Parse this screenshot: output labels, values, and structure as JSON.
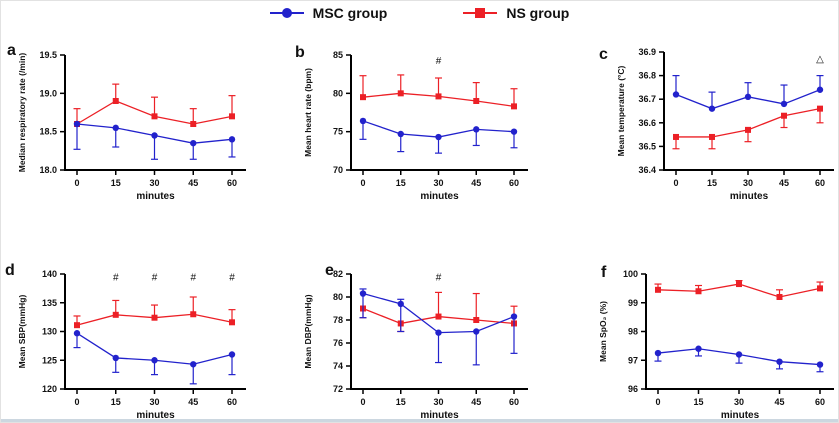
{
  "figure": {
    "legend": {
      "items": [
        {
          "label": "MSC group",
          "color": "#2222cc",
          "marker": "circle"
        },
        {
          "label": "NS group",
          "color": "#ec2026",
          "marker": "square"
        }
      ]
    }
  },
  "chart_data": [
    {
      "panel": "a",
      "type": "line",
      "xlabel": "minutes",
      "ylabel": "Median respiratory rate (/min)",
      "x": [
        0,
        15,
        30,
        45,
        60
      ],
      "ylim": [
        18.0,
        19.5
      ],
      "yticks": [
        18.0,
        18.5,
        19.0,
        19.5
      ],
      "ydecimals": 1,
      "series": [
        {
          "name": "MSC group",
          "color": "#2222cc",
          "marker": "circle",
          "values": [
            18.6,
            18.55,
            18.45,
            18.35,
            18.4
          ],
          "err_up": [
            0,
            0,
            0,
            0,
            0
          ],
          "err_down": [
            0.33,
            0.25,
            0.31,
            0.21,
            0.23
          ]
        },
        {
          "name": "NS group",
          "color": "#ec2026",
          "marker": "square",
          "values": [
            18.6,
            18.9,
            18.7,
            18.6,
            18.7
          ],
          "err_up": [
            0.2,
            0.22,
            0.25,
            0.2,
            0.27
          ],
          "err_down": [
            0,
            0,
            0,
            0,
            0
          ]
        }
      ],
      "annotations": []
    },
    {
      "panel": "b",
      "type": "line",
      "xlabel": "minutes",
      "ylabel": "Mean heart rate (bpm)",
      "x": [
        0,
        15,
        30,
        45,
        60
      ],
      "ylim": [
        70,
        85
      ],
      "yticks": [
        70,
        75,
        80,
        85
      ],
      "ydecimals": 0,
      "series": [
        {
          "name": "MSC group",
          "color": "#2222cc",
          "marker": "circle",
          "values": [
            76.4,
            74.7,
            74.3,
            75.3,
            75.0
          ],
          "err_up": [
            0,
            0,
            0,
            0,
            0
          ],
          "err_down": [
            2.4,
            2.3,
            2.1,
            2.1,
            2.1
          ]
        },
        {
          "name": "NS group",
          "color": "#ec2026",
          "marker": "square",
          "values": [
            79.5,
            80.0,
            79.6,
            79.0,
            78.3
          ],
          "err_up": [
            2.8,
            2.4,
            2.4,
            2.4,
            2.3
          ],
          "err_down": [
            0,
            0,
            0,
            0,
            0
          ]
        }
      ],
      "annotations": [
        {
          "text": "#",
          "x": 30,
          "y": 84.2,
          "color": "#3d3d3d"
        }
      ]
    },
    {
      "panel": "c",
      "type": "line",
      "xlabel": "minutes",
      "ylabel": "Mean temperature (°C)",
      "x": [
        0,
        15,
        30,
        45,
        60
      ],
      "ylim": [
        36.4,
        36.9
      ],
      "yticks": [
        36.4,
        36.5,
        36.6,
        36.7,
        36.8,
        36.9
      ],
      "ydecimals": 1,
      "series": [
        {
          "name": "MSC group",
          "color": "#2222cc",
          "marker": "circle",
          "values": [
            36.72,
            36.66,
            36.71,
            36.68,
            36.74
          ],
          "err_up": [
            0.08,
            0.07,
            0.06,
            0.08,
            0.06
          ],
          "err_down": [
            0,
            0,
            0,
            0,
            0
          ]
        },
        {
          "name": "NS group",
          "color": "#ec2026",
          "marker": "square",
          "values": [
            36.54,
            36.54,
            36.57,
            36.63,
            36.66
          ],
          "err_up": [
            0,
            0,
            0,
            0,
            0
          ],
          "err_down": [
            0.05,
            0.05,
            0.05,
            0.05,
            0.06
          ]
        }
      ],
      "annotations": [
        {
          "text": "△",
          "x": 60,
          "y": 36.87,
          "color": "#b0b0b0"
        }
      ]
    },
    {
      "panel": "d",
      "type": "line",
      "xlabel": "minutes",
      "ylabel": "Mean SBP(mmHg)",
      "x": [
        0,
        15,
        30,
        45,
        60
      ],
      "ylim": [
        120,
        140
      ],
      "yticks": [
        120,
        125,
        130,
        135,
        140
      ],
      "ydecimals": 0,
      "series": [
        {
          "name": "MSC group",
          "color": "#2222cc",
          "marker": "circle",
          "values": [
            129.7,
            125.4,
            125.0,
            124.3,
            126.0
          ],
          "err_up": [
            0,
            0,
            0,
            0,
            0
          ],
          "err_down": [
            2.5,
            2.5,
            2.5,
            3.4,
            3.5
          ]
        },
        {
          "name": "NS group",
          "color": "#ec2026",
          "marker": "square",
          "values": [
            131.1,
            132.9,
            132.4,
            133.0,
            131.6
          ],
          "err_up": [
            1.6,
            2.5,
            2.2,
            3.0,
            2.2
          ],
          "err_down": [
            0,
            0,
            0,
            0,
            0
          ]
        }
      ],
      "annotations": [
        {
          "text": "#",
          "x": 15,
          "y": 139.4,
          "color": "#3d3d3d"
        },
        {
          "text": "#",
          "x": 30,
          "y": 139.4,
          "color": "#3d3d3d"
        },
        {
          "text": "#",
          "x": 45,
          "y": 139.4,
          "color": "#3d3d3d"
        },
        {
          "text": "#",
          "x": 60,
          "y": 139.4,
          "color": "#3d3d3d"
        }
      ]
    },
    {
      "panel": "e",
      "type": "line",
      "xlabel": "minutes",
      "ylabel": "Mean DBP(mmHg)",
      "x": [
        0,
        15,
        30,
        45,
        60
      ],
      "ylim": [
        72,
        82
      ],
      "yticks": [
        72,
        74,
        76,
        78,
        80,
        82
      ],
      "ydecimals": 0,
      "series": [
        {
          "name": "MSC group",
          "color": "#2222cc",
          "marker": "circle",
          "values": [
            80.3,
            79.4,
            76.9,
            77.0,
            78.3
          ],
          "err_up": [
            0.4,
            0.4,
            0,
            0,
            0
          ],
          "err_down": [
            2.1,
            2.4,
            2.6,
            2.9,
            3.2
          ]
        },
        {
          "name": "NS group",
          "color": "#ec2026",
          "marker": "square",
          "values": [
            79.0,
            77.7,
            78.3,
            78.0,
            77.7
          ],
          "err_up": [
            0,
            0,
            2.1,
            2.3,
            1.5
          ],
          "err_down": [
            0.8,
            0.7,
            0,
            0,
            0
          ]
        }
      ],
      "annotations": [
        {
          "text": "#",
          "x": 30,
          "y": 81.7,
          "color": "#3d3d3d"
        }
      ]
    },
    {
      "panel": "f",
      "type": "line",
      "xlabel": "minutes",
      "ylabel": "Mean SpO₂ (%)",
      "x": [
        0,
        15,
        30,
        45,
        60
      ],
      "ylim": [
        96,
        100
      ],
      "yticks": [
        96,
        97,
        98,
        99,
        100
      ],
      "ydecimals": 0,
      "series": [
        {
          "name": "MSC group",
          "color": "#2222cc",
          "marker": "circle",
          "values": [
            97.25,
            97.4,
            97.2,
            96.95,
            96.85
          ],
          "err_up": [
            0,
            0,
            0,
            0,
            0
          ],
          "err_down": [
            0.28,
            0.25,
            0.3,
            0.25,
            0.25
          ]
        },
        {
          "name": "NS group",
          "color": "#ec2026",
          "marker": "square",
          "values": [
            99.45,
            99.4,
            99.65,
            99.2,
            99.5
          ],
          "err_up": [
            0.2,
            0.2,
            0.12,
            0.25,
            0.22
          ],
          "err_down": [
            0,
            0,
            0,
            0,
            0
          ]
        }
      ],
      "annotations": []
    }
  ]
}
